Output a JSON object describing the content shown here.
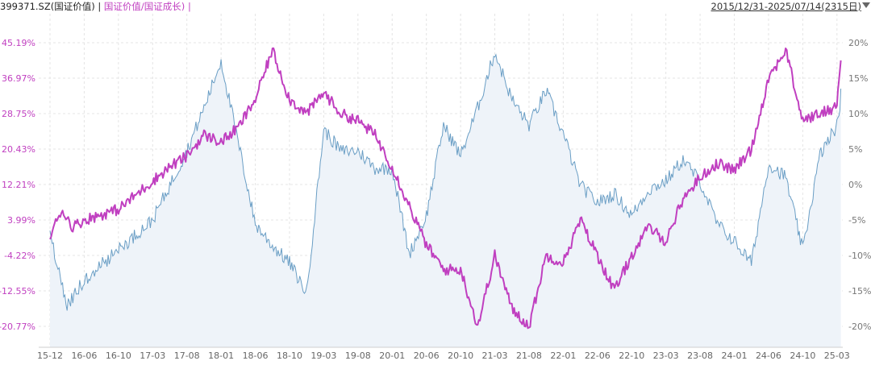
{
  "header": {
    "code_title": "399371.SZ(国证价值)",
    "separator": "|",
    "ratio_title": "国证价值/国证成长)",
    "ratio_suffix": "|",
    "date_range": "2015/12/31-2025/07/14(2315日)"
  },
  "colors": {
    "ratio_line": "#c03fc0",
    "index_line": "#6a9ec5",
    "index_fill": "#eef3f9",
    "grid": "#e4e4e4",
    "left_axis_text": "#c03fc0",
    "right_axis_text": "#777777"
  },
  "chart_data": {
    "type": "line",
    "xlabel": "",
    "ylabel": "",
    "x_ticks": [
      "15-12",
      "16-06",
      "16-10",
      "17-03",
      "17-08",
      "18-01",
      "18-06",
      "18-10",
      "19-03",
      "19-08",
      "20-01",
      "20-06",
      "20-10",
      "21-03",
      "21-08",
      "22-01",
      "22-06",
      "22-10",
      "23-03",
      "23-08",
      "24-01",
      "24-06",
      "24-10",
      "25-03"
    ],
    "left_axis": {
      "ticks": [
        "45.19%",
        "36.97%",
        "28.75%",
        "20.43%",
        "12.21%",
        "3.99%",
        "-4.22%",
        "-12.55%",
        "-20.77%"
      ],
      "ylim": [
        -20.77,
        45.19
      ]
    },
    "right_axis": {
      "ticks": [
        "20%",
        "15%",
        "10%",
        "5%",
        "0%",
        "-5%",
        "-10%",
        "-15%",
        "-20%"
      ],
      "ylim": [
        -20,
        20
      ]
    },
    "grid": true,
    "legend": "none",
    "series": [
      {
        "name": "399371.SZ(国证价值)",
        "axis": "left",
        "style": "area",
        "x": [
          "15-12",
          "16-03",
          "16-06",
          "16-10",
          "17-03",
          "17-06",
          "17-08",
          "17-11",
          "18-01",
          "18-03",
          "18-06",
          "18-08",
          "18-10",
          "18-12",
          "19-03",
          "19-05",
          "19-08",
          "19-11",
          "20-01",
          "20-03",
          "20-06",
          "20-08",
          "20-10",
          "20-12",
          "21-03",
          "21-05",
          "21-08",
          "21-10",
          "22-01",
          "22-04",
          "22-06",
          "22-08",
          "22-10",
          "22-12",
          "23-03",
          "23-05",
          "23-08",
          "23-10",
          "24-01",
          "24-02",
          "24-06",
          "24-08",
          "24-10",
          "24-12",
          "25-03",
          "25-05",
          "25-07"
        ],
        "values": [
          0.5,
          -16.0,
          -10.0,
          -3.0,
          4.0,
          12.0,
          20.0,
          30.0,
          41.0,
          22.0,
          3.0,
          -2.0,
          -6.0,
          -13.0,
          25.0,
          20.0,
          20.0,
          16.0,
          16.0,
          -4.0,
          5.0,
          26.0,
          19.0,
          30.0,
          43.0,
          32.0,
          26.0,
          34.0,
          24.0,
          12.0,
          8.0,
          10.0,
          5.0,
          11.0,
          13.0,
          18.0,
          13.0,
          3.0,
          -1.0,
          -6.0,
          17.0,
          14.0,
          -3.0,
          19.0,
          26.0,
          27.0,
          34.5
        ]
      },
      {
        "name": "国证价值/国证成长",
        "axis": "right",
        "style": "line",
        "x": [
          "15-12",
          "16-01",
          "16-03",
          "16-06",
          "16-10",
          "17-03",
          "17-06",
          "17-08",
          "17-11",
          "18-01",
          "18-03",
          "18-06",
          "18-08",
          "18-10",
          "18-12",
          "19-03",
          "19-05",
          "19-08",
          "19-11",
          "20-01",
          "20-03",
          "20-06",
          "20-08",
          "20-10",
          "20-12",
          "21-03",
          "21-05",
          "21-08",
          "21-10",
          "22-01",
          "22-04",
          "22-06",
          "22-08",
          "22-10",
          "22-12",
          "23-03",
          "23-05",
          "23-08",
          "23-10",
          "24-01",
          "24-02",
          "24-06",
          "24-08",
          "24-10",
          "24-12",
          "25-03",
          "25-05",
          "25-07"
        ],
        "values": [
          -7.5,
          -3.5,
          -6.0,
          -5.0,
          -3.5,
          0.5,
          2.5,
          4.0,
          7.0,
          6.0,
          8.0,
          12.0,
          19.0,
          12.0,
          10.0,
          13.0,
          10.0,
          9.0,
          7.0,
          2.5,
          -3.0,
          -8.5,
          -12.0,
          -12.0,
          -20.0,
          -10.0,
          -17.5,
          -20.0,
          -10.0,
          -11.0,
          -5.0,
          -10.0,
          -15.0,
          -10.0,
          -6.0,
          -8.0,
          -2.0,
          1.0,
          3.0,
          2.0,
          5.0,
          15.0,
          19.0,
          9.0,
          10.0,
          11.0,
          15.0,
          17.5
        ]
      }
    ]
  }
}
